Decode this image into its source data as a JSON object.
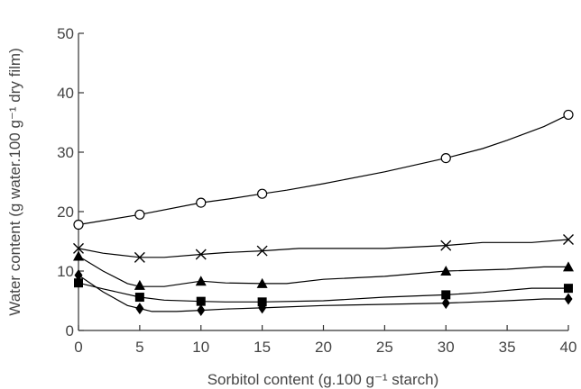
{
  "chart_data": {
    "type": "line",
    "xlabel": "Sorbitol content (g.100 g⁻¹ starch)",
    "ylabel": "Water content (g water.100 g⁻¹ dry film)",
    "xlim": [
      0,
      40
    ],
    "ylim": [
      0,
      50
    ],
    "xticks": [
      0,
      5,
      10,
      15,
      20,
      25,
      30,
      35,
      40
    ],
    "yticks": [
      0,
      10,
      20,
      30,
      40,
      50
    ],
    "grid": false,
    "legend": "none",
    "series": [
      {
        "marker": "circle-open",
        "points": [
          [
            0,
            17.8
          ],
          [
            5,
            19.5
          ],
          [
            10,
            21.5
          ],
          [
            15,
            23.0
          ],
          [
            30,
            29.0
          ],
          [
            40,
            36.3
          ]
        ],
        "curve": [
          [
            0,
            17.8
          ],
          [
            5,
            19.5
          ],
          [
            10,
            21.5
          ],
          [
            12.5,
            22.2
          ],
          [
            15,
            23.0
          ],
          [
            17,
            23.6
          ],
          [
            20,
            24.7
          ],
          [
            25,
            26.7
          ],
          [
            30,
            29.0
          ],
          [
            33,
            30.6
          ],
          [
            35,
            32.0
          ],
          [
            38,
            34.3
          ],
          [
            40,
            36.3
          ]
        ]
      },
      {
        "marker": "cross",
        "points": [
          [
            0,
            13.8
          ],
          [
            5,
            12.3
          ],
          [
            10,
            12.8
          ],
          [
            15,
            13.4
          ],
          [
            30,
            14.3
          ],
          [
            40,
            15.3
          ]
        ],
        "curve": [
          [
            0,
            13.8
          ],
          [
            2,
            13.0
          ],
          [
            5,
            12.3
          ],
          [
            7,
            12.3
          ],
          [
            10,
            12.8
          ],
          [
            12,
            13.1
          ],
          [
            15,
            13.4
          ],
          [
            18,
            13.8
          ],
          [
            25,
            13.8
          ],
          [
            30,
            14.3
          ],
          [
            33,
            14.8
          ],
          [
            37,
            14.8
          ],
          [
            40,
            15.3
          ]
        ]
      },
      {
        "marker": "triangle",
        "points": [
          [
            0,
            12.5
          ],
          [
            5,
            7.6
          ],
          [
            10,
            8.3
          ],
          [
            15,
            7.9
          ],
          [
            30,
            10.0
          ],
          [
            40,
            10.7
          ]
        ],
        "curve": [
          [
            0,
            12.5
          ],
          [
            2,
            10.0
          ],
          [
            4,
            7.9
          ],
          [
            5,
            7.4
          ],
          [
            7,
            7.4
          ],
          [
            10,
            8.3
          ],
          [
            12,
            8.0
          ],
          [
            15,
            7.9
          ],
          [
            17,
            7.9
          ],
          [
            20,
            8.6
          ],
          [
            25,
            9.1
          ],
          [
            30,
            10.0
          ],
          [
            35,
            10.3
          ],
          [
            38,
            10.7
          ],
          [
            40,
            10.7
          ]
        ]
      },
      {
        "marker": "square",
        "points": [
          [
            0,
            8.0
          ],
          [
            5,
            5.6
          ],
          [
            10,
            4.9
          ],
          [
            15,
            4.8
          ],
          [
            30,
            6.0
          ],
          [
            40,
            7.1
          ]
        ],
        "curve": [
          [
            0,
            8.0
          ],
          [
            2,
            7.0
          ],
          [
            5,
            5.6
          ],
          [
            7,
            5.1
          ],
          [
            10,
            4.9
          ],
          [
            12,
            4.8
          ],
          [
            15,
            4.8
          ],
          [
            20,
            5.0
          ],
          [
            25,
            5.6
          ],
          [
            30,
            6.0
          ],
          [
            33,
            6.4
          ],
          [
            37,
            7.1
          ],
          [
            40,
            7.1
          ]
        ]
      },
      {
        "marker": "diamond",
        "points": [
          [
            0,
            9.3
          ],
          [
            5,
            3.7
          ],
          [
            10,
            3.4
          ],
          [
            15,
            3.8
          ],
          [
            30,
            4.6
          ],
          [
            40,
            5.3
          ]
        ],
        "curve": [
          [
            0,
            9.3
          ],
          [
            2,
            6.5
          ],
          [
            4,
            4.2
          ],
          [
            5,
            3.7
          ],
          [
            6,
            3.2
          ],
          [
            8,
            3.2
          ],
          [
            10,
            3.4
          ],
          [
            12,
            3.6
          ],
          [
            15,
            3.8
          ],
          [
            20,
            4.2
          ],
          [
            25,
            4.4
          ],
          [
            30,
            4.6
          ],
          [
            35,
            5.0
          ],
          [
            38,
            5.3
          ],
          [
            40,
            5.3
          ]
        ]
      }
    ]
  }
}
